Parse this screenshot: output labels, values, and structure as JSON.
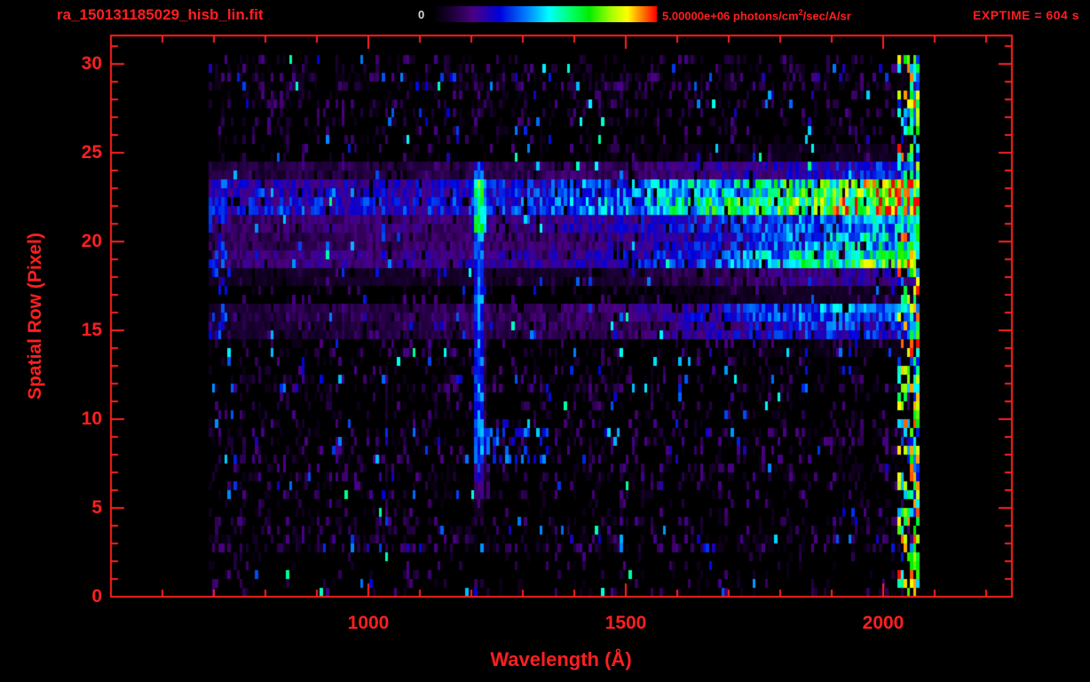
{
  "colors": {
    "background": "#000000",
    "accent_red": "#ff1f1f",
    "colorbar_zero_label": "#d8d8d8"
  },
  "header": {
    "title": "ra_150131185029_hisb_lin.fit",
    "exptime": "EXPTIME = 604 s"
  },
  "colorbar": {
    "zero_label": "0",
    "flux_prefix": "5.00000e+06 photons/cm",
    "flux_sup": "2",
    "flux_suffix": "/sec/A/sr"
  },
  "chart_data": {
    "type": "heatmap",
    "title": "ra_150131185029_hisb_lin.fit",
    "xlabel": "Wavelength (Å)",
    "ylabel": "Spatial Row (Pixel)",
    "xlim": [
      500,
      2250
    ],
    "ylim": [
      0,
      31.6
    ],
    "x_ticks": [
      1000,
      1500,
      2000
    ],
    "x_minor_tick_step": 100,
    "y_ticks": [
      0,
      5,
      10,
      15,
      20,
      25,
      30
    ],
    "y_minor_tick_step": 1,
    "colorbar_range": {
      "min": 0,
      "max": 5000000,
      "units": "photons/cm^2/sec/A/sr"
    },
    "exposure_time_s": 604,
    "data_extent": {
      "wavelength_min": 690,
      "wavelength_max": 2074,
      "row_min": 0,
      "row_max": 30
    },
    "colormap": [
      {
        "pos": 0.0,
        "color": "#000000"
      },
      {
        "pos": 0.08,
        "color": "#1a0033"
      },
      {
        "pos": 0.18,
        "color": "#4b0082"
      },
      {
        "pos": 0.3,
        "color": "#0000dd"
      },
      {
        "pos": 0.42,
        "color": "#0080ff"
      },
      {
        "pos": 0.52,
        "color": "#00ffff"
      },
      {
        "pos": 0.62,
        "color": "#00ff66"
      },
      {
        "pos": 0.7,
        "color": "#00ee00"
      },
      {
        "pos": 0.8,
        "color": "#aaff00"
      },
      {
        "pos": 0.87,
        "color": "#ffff00"
      },
      {
        "pos": 0.93,
        "color": "#ff8800"
      },
      {
        "pos": 1.0,
        "color": "#ff0000"
      }
    ],
    "vertical_emission_line": {
      "wavelength": 1216,
      "row_min": 5,
      "row_max": 24.5,
      "core_half_width": 6,
      "wing_half_width": 13
    },
    "spectral_bands": [
      {
        "row_center": 22.3,
        "row_sigma": 1.15,
        "profile": [
          [
            700,
            0.28
          ],
          [
            1200,
            0.32
          ],
          [
            1500,
            0.45
          ],
          [
            1700,
            0.62
          ],
          [
            1850,
            0.72
          ],
          [
            1950,
            0.85
          ],
          [
            2020,
            0.93
          ],
          [
            2065,
            1.0
          ]
        ]
      },
      {
        "row_center": 19.3,
        "row_sigma": 0.85,
        "profile": [
          [
            700,
            0.17
          ],
          [
            1400,
            0.22
          ],
          [
            1700,
            0.42
          ],
          [
            1850,
            0.58
          ],
          [
            1950,
            0.68
          ],
          [
            2060,
            0.75
          ]
        ]
      },
      {
        "row_center": 15.6,
        "row_sigma": 0.7,
        "profile": [
          [
            700,
            0.1
          ],
          [
            1500,
            0.18
          ],
          [
            1750,
            0.38
          ],
          [
            1900,
            0.48
          ],
          [
            2000,
            0.42
          ],
          [
            2060,
            0.5
          ]
        ]
      }
    ],
    "right_edge_column": {
      "wavelength_min": 2030,
      "wavelength_max": 2072
    },
    "noise": {
      "bin_width_angstrom": 6,
      "speckle_probability": 0.42,
      "blue_dash_probability": 0.028,
      "bright_speckle_probability": 0.006
    }
  }
}
